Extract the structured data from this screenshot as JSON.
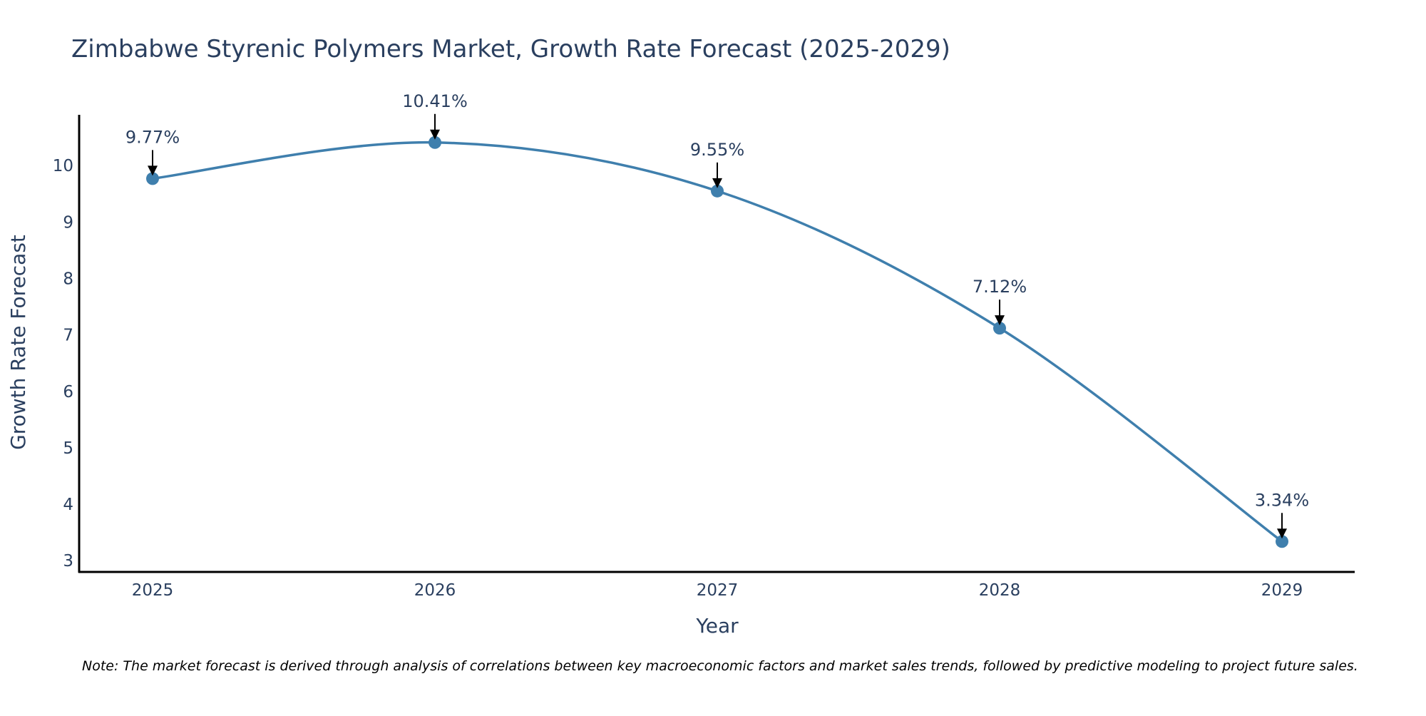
{
  "chart_data": {
    "type": "line",
    "title": "Zimbabwe Styrenic Polymers Market, Growth Rate Forecast (2025-2029)",
    "xlabel": "Year",
    "ylabel": "Growth Rate Forecast",
    "categories": [
      "2025",
      "2026",
      "2027",
      "2028",
      "2029"
    ],
    "series": [
      {
        "name": "Growth Rate Forecast",
        "values": [
          9.77,
          10.41,
          9.55,
          7.12,
          3.34
        ],
        "color": "#3f7fad"
      }
    ],
    "data_labels": [
      "9.77%",
      "10.41%",
      "9.55%",
      "7.12%",
      "3.34%"
    ],
    "y_ticks": [
      3,
      4,
      5,
      6,
      7,
      8,
      9,
      10
    ],
    "ylim": [
      2.8,
      10.9
    ],
    "grid": false,
    "legend": "none",
    "note": "Note: The market forecast is derived through analysis of correlations between key macroeconomic factors and market sales trends, followed by predictive modeling to project future sales."
  }
}
